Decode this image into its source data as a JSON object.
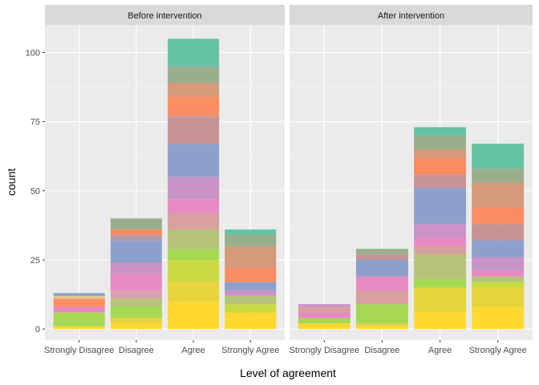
{
  "chart_data": {
    "type": "bar",
    "stacked": true,
    "xlabel": "Level of agreement",
    "ylabel": "count",
    "ylim": [
      -4,
      110
    ],
    "yticks": [
      0,
      25,
      50,
      75,
      100
    ],
    "categories": [
      "Strongly Disagree",
      "Disagree",
      "Agree",
      "Strongly Agree"
    ],
    "legend": "none",
    "grid": true,
    "palette": [
      "#66c2a5",
      "#8da0cb",
      "#e78ac3",
      "#a6d854",
      "#ffd92f",
      "#e5c494",
      "#b3b3b3",
      "#fc8d62"
    ],
    "panels": [
      {
        "title": "Before intervention",
        "totals": [
          13,
          40,
          105,
          36
        ],
        "segments": [
          [
            {
              "value": 1,
              "color": "#ffd92f"
            },
            {
              "value": 5,
              "color": "#a6d854"
            },
            {
              "value": 2,
              "color": "#e78ac3"
            },
            {
              "value": 3,
              "color": "#fc8d62"
            },
            {
              "value": 1,
              "color": "#e5c494"
            },
            {
              "value": 1,
              "color": "#8da0cb"
            }
          ],
          [
            {
              "value": 2,
              "color": "#ffd92f"
            },
            {
              "value": 2,
              "color": "#e8d43c"
            },
            {
              "value": 4,
              "color": "#a6d854"
            },
            {
              "value": 3,
              "color": "#b5c47a"
            },
            {
              "value": 3,
              "color": "#d9a0b0"
            },
            {
              "value": 6,
              "color": "#e78ac3"
            },
            {
              "value": 4,
              "color": "#c993c8"
            },
            {
              "value": 8,
              "color": "#8da0cb"
            },
            {
              "value": 2,
              "color": "#b39aa8"
            },
            {
              "value": 2,
              "color": "#fc8d62"
            },
            {
              "value": 4,
              "color": "#99ae8c"
            }
          ],
          [
            {
              "value": 10,
              "color": "#ffd92f"
            },
            {
              "value": 7,
              "color": "#e8d43c"
            },
            {
              "value": 8,
              "color": "#c9d941"
            },
            {
              "value": 4,
              "color": "#a6d854"
            },
            {
              "value": 7,
              "color": "#b5c47a"
            },
            {
              "value": 6,
              "color": "#d9a0a0"
            },
            {
              "value": 5,
              "color": "#e78ac3"
            },
            {
              "value": 8,
              "color": "#c993c8"
            },
            {
              "value": 12,
              "color": "#8da0cb"
            },
            {
              "value": 10,
              "color": "#c99393"
            },
            {
              "value": 7,
              "color": "#fc8d62"
            },
            {
              "value": 5,
              "color": "#d49a7a"
            },
            {
              "value": 6,
              "color": "#99ae8c"
            },
            {
              "value": 10,
              "color": "#66c2a5"
            }
          ],
          [
            {
              "value": 6,
              "color": "#ffd92f"
            },
            {
              "value": 3,
              "color": "#c9d941"
            },
            {
              "value": 3,
              "color": "#b5c47a"
            },
            {
              "value": 2,
              "color": "#c993c8"
            },
            {
              "value": 3,
              "color": "#8da0cb"
            },
            {
              "value": 5,
              "color": "#fc8d62"
            },
            {
              "value": 8,
              "color": "#d49a7a"
            },
            {
              "value": 4,
              "color": "#99ae8c"
            },
            {
              "value": 2,
              "color": "#66c2a5"
            }
          ]
        ]
      },
      {
        "title": "After intervention",
        "totals": [
          9,
          29,
          73,
          67
        ],
        "segments": [
          [
            {
              "value": 2,
              "color": "#ffd92f"
            },
            {
              "value": 2,
              "color": "#a6d854"
            },
            {
              "value": 2,
              "color": "#e78ac3"
            },
            {
              "value": 2,
              "color": "#d9a0a0"
            },
            {
              "value": 1,
              "color": "#c993c8"
            }
          ],
          [
            {
              "value": 1,
              "color": "#ffd92f"
            },
            {
              "value": 1,
              "color": "#e8d43c"
            },
            {
              "value": 7,
              "color": "#a6d854"
            },
            {
              "value": 5,
              "color": "#d9a0a0"
            },
            {
              "value": 5,
              "color": "#e78ac3"
            },
            {
              "value": 6,
              "color": "#8da0cb"
            },
            {
              "value": 2,
              "color": "#c99393"
            },
            {
              "value": 2,
              "color": "#99ae8c"
            }
          ],
          [
            {
              "value": 6,
              "color": "#ffd92f"
            },
            {
              "value": 9,
              "color": "#e8d43c"
            },
            {
              "value": 3,
              "color": "#a6d854"
            },
            {
              "value": 9,
              "color": "#b5c47a"
            },
            {
              "value": 3,
              "color": "#d9a0a0"
            },
            {
              "value": 3,
              "color": "#e78ac3"
            },
            {
              "value": 5,
              "color": "#c993c8"
            },
            {
              "value": 13,
              "color": "#8da0cb"
            },
            {
              "value": 5,
              "color": "#c99393"
            },
            {
              "value": 6,
              "color": "#fc8d62"
            },
            {
              "value": 3,
              "color": "#d49a7a"
            },
            {
              "value": 5,
              "color": "#99ae8c"
            },
            {
              "value": 3,
              "color": "#66c2a5"
            }
          ],
          [
            {
              "value": 8,
              "color": "#ffd92f"
            },
            {
              "value": 7,
              "color": "#e8d43c"
            },
            {
              "value": 2,
              "color": "#c9d941"
            },
            {
              "value": 2,
              "color": "#b5c47a"
            },
            {
              "value": 2,
              "color": "#e78ac3"
            },
            {
              "value": 5,
              "color": "#c993c8"
            },
            {
              "value": 6,
              "color": "#8da0cb"
            },
            {
              "value": 6,
              "color": "#c99393"
            },
            {
              "value": 6,
              "color": "#fc8d62"
            },
            {
              "value": 9,
              "color": "#d49a7a"
            },
            {
              "value": 5,
              "color": "#99ae8c"
            },
            {
              "value": 9,
              "color": "#66c2a5"
            }
          ]
        ]
      }
    ]
  }
}
